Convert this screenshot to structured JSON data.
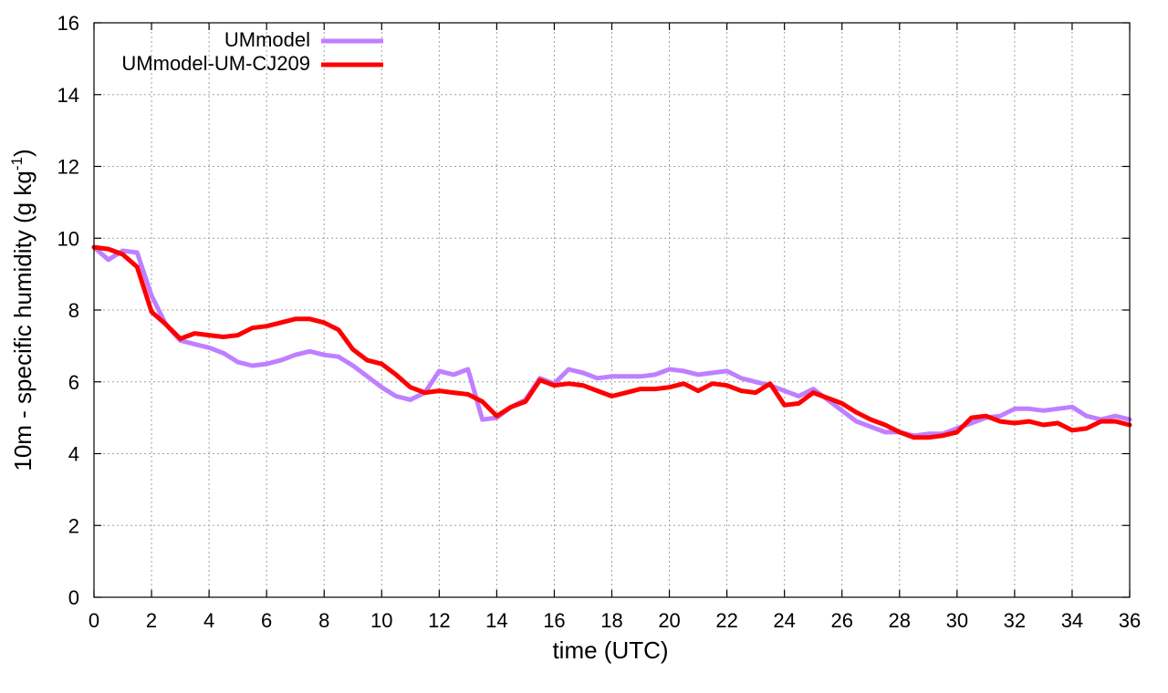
{
  "chart_data": {
    "type": "line",
    "title": "",
    "xlabel": "time (UTC)",
    "ylabel_main": "10m - specific humidity (g kg",
    "ylabel_sup": "-1",
    "ylabel_close": ")",
    "xlim": [
      0,
      36
    ],
    "ylim": [
      0,
      16
    ],
    "xticks": [
      0,
      2,
      4,
      6,
      8,
      10,
      12,
      14,
      16,
      18,
      20,
      22,
      24,
      26,
      28,
      30,
      32,
      34,
      36
    ],
    "yticks": [
      0,
      2,
      4,
      6,
      8,
      10,
      12,
      14,
      16
    ],
    "grid": true,
    "legend_position": "top-left",
    "series": [
      {
        "name": "UMmodel",
        "color": "#bf7fff",
        "x": [
          0,
          0.5,
          1,
          1.5,
          2,
          2.5,
          3,
          3.5,
          4,
          4.5,
          5,
          5.5,
          6,
          6.5,
          7,
          7.5,
          8,
          8.5,
          9,
          9.5,
          10,
          10.5,
          11,
          11.5,
          12,
          12.5,
          13,
          13.5,
          14,
          14.5,
          15,
          15.5,
          16,
          16.5,
          17,
          17.5,
          18,
          18.5,
          19,
          19.5,
          20,
          20.5,
          21,
          21.5,
          22,
          22.5,
          23,
          23.5,
          24,
          24.5,
          25,
          25.5,
          26,
          26.5,
          27,
          27.5,
          28,
          28.5,
          29,
          29.5,
          30,
          30.5,
          31,
          31.5,
          32,
          32.5,
          33,
          33.5,
          34,
          34.5,
          35,
          35.5,
          36
        ],
        "values": [
          9.75,
          9.4,
          9.65,
          9.6,
          8.4,
          7.6,
          7.15,
          7.05,
          6.95,
          6.8,
          6.55,
          6.45,
          6.5,
          6.6,
          6.75,
          6.85,
          6.75,
          6.7,
          6.45,
          6.15,
          5.85,
          5.6,
          5.5,
          5.7,
          6.3,
          6.2,
          6.35,
          4.95,
          5.0,
          5.3,
          5.5,
          6.1,
          5.95,
          6.35,
          6.25,
          6.1,
          6.15,
          6.15,
          6.15,
          6.2,
          6.35,
          6.3,
          6.2,
          6.25,
          6.3,
          6.1,
          6.0,
          5.9,
          5.75,
          5.6,
          5.8,
          5.5,
          5.2,
          4.9,
          4.75,
          4.6,
          4.6,
          4.5,
          4.55,
          4.55,
          4.7,
          4.85,
          5.0,
          5.05,
          5.25,
          5.25,
          5.2,
          5.25,
          5.3,
          5.05,
          4.95,
          5.05,
          4.95
        ]
      },
      {
        "name": "UMmodel-UM-CJ209",
        "color": "#ff0000",
        "x": [
          0,
          0.5,
          1,
          1.5,
          2,
          2.5,
          3,
          3.5,
          4,
          4.5,
          5,
          5.5,
          6,
          6.5,
          7,
          7.5,
          8,
          8.5,
          9,
          9.5,
          10,
          10.5,
          11,
          11.5,
          12,
          12.5,
          13,
          13.5,
          14,
          14.5,
          15,
          15.5,
          16,
          16.5,
          17,
          17.5,
          18,
          18.5,
          19,
          19.5,
          20,
          20.5,
          21,
          21.5,
          22,
          22.5,
          23,
          23.5,
          24,
          24.5,
          25,
          25.5,
          26,
          26.5,
          27,
          27.5,
          28,
          28.5,
          29,
          29.5,
          30,
          30.5,
          31,
          31.5,
          32,
          32.5,
          33,
          33.5,
          34,
          34.5,
          35,
          35.5,
          36
        ],
        "values": [
          9.75,
          9.7,
          9.55,
          9.2,
          7.95,
          7.6,
          7.2,
          7.35,
          7.3,
          7.25,
          7.3,
          7.5,
          7.55,
          7.65,
          7.75,
          7.75,
          7.65,
          7.45,
          6.9,
          6.6,
          6.5,
          6.2,
          5.85,
          5.7,
          5.75,
          5.7,
          5.65,
          5.45,
          5.05,
          5.3,
          5.45,
          6.05,
          5.9,
          5.95,
          5.9,
          5.75,
          5.6,
          5.7,
          5.8,
          5.8,
          5.85,
          5.95,
          5.75,
          5.95,
          5.9,
          5.75,
          5.7,
          5.95,
          5.35,
          5.4,
          5.7,
          5.55,
          5.4,
          5.15,
          4.95,
          4.8,
          4.6,
          4.45,
          4.45,
          4.5,
          4.6,
          5.0,
          5.05,
          4.9,
          4.85,
          4.9,
          4.8,
          4.85,
          4.65,
          4.7,
          4.9,
          4.9,
          4.8
        ]
      }
    ]
  }
}
